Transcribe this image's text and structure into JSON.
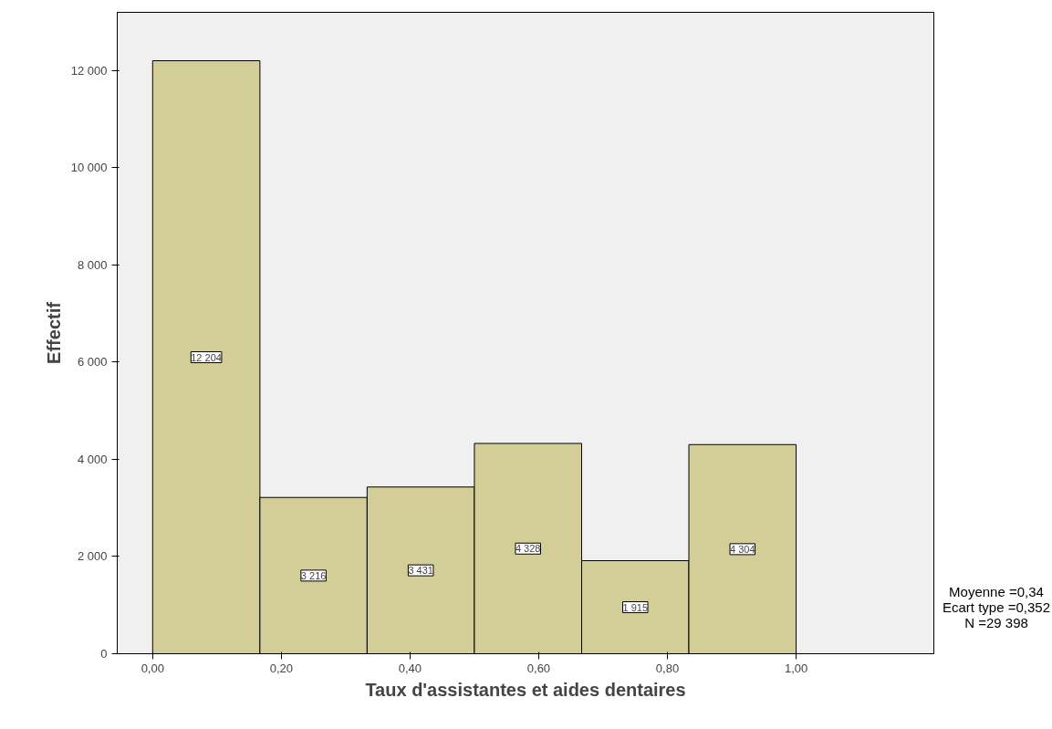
{
  "chart_data": {
    "type": "histogram",
    "xlabel": "Taux d'assistantes et aides dentaires",
    "ylabel": "Effectif",
    "bins": [
      0,
      0.1667,
      0.3333,
      0.5,
      0.6667,
      0.8333,
      1.0
    ],
    "values": [
      12204,
      3216,
      3431,
      4328,
      1915,
      4304
    ],
    "value_labels": [
      "12 204",
      "3 216",
      "3 431",
      "4 328",
      "1 915",
      "4 304"
    ],
    "color": "#d3ce97",
    "xlim": [
      -0.055,
      1.214
    ],
    "ylim": [
      0,
      13200
    ],
    "xticks": [
      {
        "value": 0,
        "label": "0,00"
      },
      {
        "value": 0.2,
        "label": "0,20"
      },
      {
        "value": 0.4,
        "label": "0,40"
      },
      {
        "value": 0.6,
        "label": "0,60"
      },
      {
        "value": 0.8,
        "label": "0,80"
      },
      {
        "value": 1.0,
        "label": "1,00"
      }
    ],
    "yticks": [
      {
        "value": 0,
        "label": "0"
      },
      {
        "value": 2000,
        "label": "2 000"
      },
      {
        "value": 4000,
        "label": "4 000"
      },
      {
        "value": 6000,
        "label": "6 000"
      },
      {
        "value": 8000,
        "label": "8 000"
      },
      {
        "value": 10000,
        "label": "10 000"
      },
      {
        "value": 12000,
        "label": "12 000"
      }
    ],
    "annotations": [
      "Moyenne =0,34",
      "Ecart type =0,352",
      "N =29 398"
    ],
    "grid": false
  }
}
